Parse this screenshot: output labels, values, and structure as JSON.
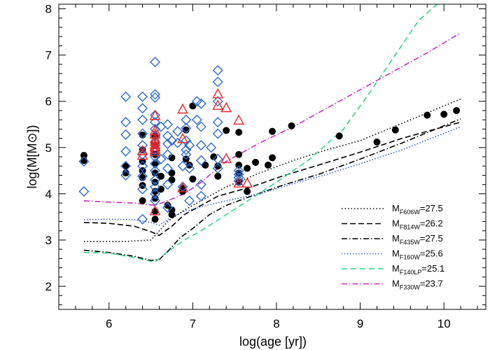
{
  "chart_data": {
    "type": "scatter",
    "title": "",
    "xlabel": "log(age [yr])",
    "ylabel": "log(M[M⊙])",
    "xlim": [
      5.4,
      10.5
    ],
    "ylim": [
      1.5,
      8.1
    ],
    "xticks": [
      6,
      7,
      8,
      9,
      10
    ],
    "yticks": [
      2,
      3,
      4,
      5,
      6,
      7,
      8
    ],
    "grid": false,
    "legend_position": "bottom-right",
    "scatter_series": [
      {
        "marker": "filled-circle",
        "color": "#000000",
        "points": [
          [
            5.7,
            4.83
          ],
          [
            5.7,
            4.72
          ],
          [
            6.2,
            4.6
          ],
          [
            6.2,
            4.45
          ],
          [
            6.4,
            5.27
          ],
          [
            6.4,
            4.95
          ],
          [
            6.4,
            4.7
          ],
          [
            6.4,
            4.5
          ],
          [
            6.4,
            4.35
          ],
          [
            6.4,
            4.18
          ],
          [
            6.4,
            3.85
          ],
          [
            6.55,
            5.25
          ],
          [
            6.55,
            5.05
          ],
          [
            6.55,
            4.85
          ],
          [
            6.55,
            4.65
          ],
          [
            6.55,
            4.45
          ],
          [
            6.55,
            4.25
          ],
          [
            6.55,
            4.05
          ],
          [
            6.55,
            3.9
          ],
          [
            6.55,
            3.62
          ],
          [
            6.55,
            3.45
          ],
          [
            6.62,
            4.38
          ],
          [
            6.62,
            4.1
          ],
          [
            6.7,
            3.75
          ],
          [
            6.75,
            4.78
          ],
          [
            6.75,
            4.45
          ],
          [
            6.75,
            4.3
          ],
          [
            6.75,
            3.65
          ],
          [
            6.75,
            3.55
          ],
          [
            6.88,
            4.12
          ],
          [
            6.88,
            4.05
          ],
          [
            6.92,
            4.75
          ],
          [
            6.92,
            5.38
          ],
          [
            6.96,
            4.62
          ],
          [
            7.0,
            4.32
          ],
          [
            7.0,
            5.9
          ],
          [
            7.15,
            4.62
          ],
          [
            7.25,
            4.8
          ],
          [
            7.3,
            4.6
          ],
          [
            7.3,
            4.38
          ],
          [
            7.4,
            5.37
          ],
          [
            7.55,
            5.33
          ],
          [
            7.55,
            4.85
          ],
          [
            7.55,
            4.62
          ],
          [
            7.55,
            4.45
          ],
          [
            7.55,
            4.25
          ],
          [
            7.65,
            4.55
          ],
          [
            7.65,
            4.05
          ],
          [
            7.75,
            4.68
          ],
          [
            7.9,
            4.62
          ],
          [
            7.95,
            4.78
          ],
          [
            7.95,
            5.35
          ],
          [
            8.18,
            5.47
          ],
          [
            8.75,
            5.25
          ],
          [
            9.2,
            5.12
          ],
          [
            9.42,
            5.38
          ],
          [
            9.8,
            5.7
          ],
          [
            10.0,
            5.72
          ],
          [
            10.15,
            5.8
          ]
        ]
      },
      {
        "marker": "open-diamond",
        "color": "#2d6bd1",
        "points": [
          [
            5.7,
            4.7
          ],
          [
            5.7,
            4.05
          ],
          [
            6.2,
            6.1
          ],
          [
            6.2,
            5.55
          ],
          [
            6.2,
            5.28
          ],
          [
            6.2,
            4.92
          ],
          [
            6.2,
            4.6
          ],
          [
            6.2,
            4.4
          ],
          [
            6.4,
            6.1
          ],
          [
            6.4,
            5.85
          ],
          [
            6.4,
            5.6
          ],
          [
            6.4,
            5.3
          ],
          [
            6.4,
            5.05
          ],
          [
            6.4,
            4.85
          ],
          [
            6.4,
            4.6
          ],
          [
            6.4,
            4.38
          ],
          [
            6.4,
            4.1
          ],
          [
            6.4,
            3.45
          ],
          [
            6.55,
            6.85
          ],
          [
            6.55,
            6.15
          ],
          [
            6.55,
            6.08
          ],
          [
            6.55,
            5.7
          ],
          [
            6.55,
            5.55
          ],
          [
            6.55,
            5.4
          ],
          [
            6.55,
            5.25
          ],
          [
            6.55,
            5.1
          ],
          [
            6.55,
            4.95
          ],
          [
            6.55,
            4.8
          ],
          [
            6.55,
            4.65
          ],
          [
            6.55,
            4.5
          ],
          [
            6.55,
            4.3
          ],
          [
            6.55,
            4.15
          ],
          [
            6.55,
            4.0
          ],
          [
            6.55,
            3.85
          ],
          [
            6.62,
            5.45
          ],
          [
            6.62,
            4.75
          ],
          [
            6.7,
            5.5
          ],
          [
            6.7,
            5.25
          ],
          [
            6.7,
            5.08
          ],
          [
            6.7,
            4.85
          ],
          [
            6.7,
            4.55
          ],
          [
            6.7,
            4.2
          ],
          [
            6.7,
            3.7
          ],
          [
            6.75,
            5.15
          ],
          [
            6.82,
            5.35
          ],
          [
            6.82,
            5.1
          ],
          [
            6.88,
            4.6
          ],
          [
            6.88,
            4.15
          ],
          [
            6.92,
            5.6
          ],
          [
            6.92,
            5.42
          ],
          [
            6.92,
            5.15
          ],
          [
            6.92,
            4.95
          ],
          [
            6.92,
            4.85
          ],
          [
            6.96,
            5.05
          ],
          [
            6.96,
            4.55
          ],
          [
            6.96,
            3.85
          ],
          [
            7.05,
            6.0
          ],
          [
            7.05,
            5.6
          ],
          [
            7.1,
            5.95
          ],
          [
            7.1,
            5.45
          ],
          [
            7.1,
            5.05
          ],
          [
            7.1,
            4.72
          ],
          [
            7.1,
            4.2
          ],
          [
            7.1,
            3.95
          ],
          [
            7.22,
            5.0
          ],
          [
            7.3,
            6.67
          ],
          [
            7.3,
            6.42
          ],
          [
            7.3,
            6.0
          ],
          [
            7.3,
            5.55
          ],
          [
            7.3,
            5.3
          ],
          [
            7.3,
            4.75
          ],
          [
            7.3,
            4.55
          ],
          [
            7.55,
            4.5
          ],
          [
            7.55,
            4.42
          ],
          [
            7.55,
            4.35
          ],
          [
            7.55,
            4.28
          ]
        ]
      },
      {
        "marker": "open-triangle",
        "color": "#e8262a",
        "points": [
          [
            6.4,
            4.92
          ],
          [
            6.4,
            4.82
          ],
          [
            6.55,
            5.68
          ],
          [
            6.55,
            5.35
          ],
          [
            6.55,
            5.28
          ],
          [
            6.55,
            5.18
          ],
          [
            6.55,
            5.12
          ],
          [
            6.55,
            5.05
          ],
          [
            6.55,
            5.0
          ],
          [
            6.55,
            4.95
          ],
          [
            6.55,
            4.9
          ],
          [
            6.55,
            3.62
          ],
          [
            6.88,
            5.82
          ],
          [
            6.88,
            5.18
          ],
          [
            6.88,
            4.12
          ],
          [
            7.3,
            6.15
          ],
          [
            7.3,
            5.9
          ],
          [
            7.4,
            5.85
          ],
          [
            7.4,
            4.75
          ],
          [
            7.55,
            5.58
          ],
          [
            7.55,
            4.22
          ],
          [
            7.65,
            4.22
          ]
        ]
      }
    ],
    "line_series": [
      {
        "name": "F606W",
        "legend_label": "M",
        "legend_sub": "F606W",
        "legend_value": "=27.5",
        "color": "#000000",
        "dash": "1.5,3",
        "points": [
          [
            5.7,
            2.97
          ],
          [
            6.0,
            2.97
          ],
          [
            6.2,
            2.97
          ],
          [
            6.5,
            3.0
          ],
          [
            6.7,
            3.4
          ],
          [
            6.9,
            3.65
          ],
          [
            7.1,
            3.85
          ],
          [
            7.4,
            4.15
          ],
          [
            7.8,
            4.45
          ],
          [
            8.2,
            4.72
          ],
          [
            8.6,
            4.95
          ],
          [
            9.0,
            5.15
          ],
          [
            9.4,
            5.45
          ],
          [
            9.8,
            5.75
          ],
          [
            10.2,
            6.05
          ]
        ]
      },
      {
        "name": "F814W",
        "legend_label": "M",
        "legend_sub": "F814W",
        "legend_value": "=26.2",
        "color": "#000000",
        "dash": "8,4",
        "points": [
          [
            5.7,
            3.38
          ],
          [
            6.0,
            3.36
          ],
          [
            6.3,
            3.3
          ],
          [
            6.5,
            3.18
          ],
          [
            6.6,
            3.1
          ],
          [
            6.75,
            3.3
          ],
          [
            6.9,
            3.55
          ],
          [
            7.1,
            3.75
          ],
          [
            7.3,
            3.95
          ],
          [
            7.7,
            4.15
          ],
          [
            8.1,
            4.4
          ],
          [
            8.5,
            4.62
          ],
          [
            9.0,
            4.9
          ],
          [
            9.5,
            5.2
          ],
          [
            10.2,
            5.55
          ]
        ]
      },
      {
        "name": "F435W",
        "legend_label": "M",
        "legend_sub": "F435W",
        "legend_value": "=27.5",
        "color": "#000000",
        "dash": "8,3,1.5,3",
        "points": [
          [
            5.7,
            2.78
          ],
          [
            6.0,
            2.73
          ],
          [
            6.3,
            2.65
          ],
          [
            6.5,
            2.56
          ],
          [
            6.6,
            2.58
          ],
          [
            6.7,
            2.75
          ],
          [
            6.85,
            3.05
          ],
          [
            7.0,
            3.25
          ],
          [
            7.2,
            3.55
          ],
          [
            7.4,
            3.75
          ],
          [
            7.7,
            3.95
          ],
          [
            8.1,
            4.2
          ],
          [
            8.5,
            4.42
          ],
          [
            9.0,
            4.75
          ],
          [
            9.5,
            5.1
          ],
          [
            10.2,
            5.62
          ]
        ]
      },
      {
        "name": "F160W",
        "legend_label": "M",
        "legend_sub": "F160W",
        "legend_value": "=25.6",
        "color": "#3a5ed0",
        "dash": "1.5,2.5",
        "points": [
          [
            5.7,
            3.44
          ],
          [
            6.0,
            3.45
          ],
          [
            6.3,
            3.44
          ],
          [
            6.5,
            3.38
          ],
          [
            6.6,
            3.32
          ],
          [
            6.75,
            3.5
          ],
          [
            6.9,
            3.62
          ],
          [
            7.1,
            3.72
          ],
          [
            7.4,
            3.85
          ],
          [
            7.8,
            4.0
          ],
          [
            8.2,
            4.22
          ],
          [
            8.6,
            4.42
          ],
          [
            9.0,
            4.65
          ],
          [
            9.5,
            4.95
          ],
          [
            10.2,
            5.45
          ]
        ]
      },
      {
        "name": "F140LP",
        "legend_label": "M",
        "legend_sub": "F140LP",
        "legend_value": "=25.1",
        "color": "#2fd68a",
        "dash": "8,5",
        "points": [
          [
            5.7,
            2.73
          ],
          [
            6.0,
            2.72
          ],
          [
            6.3,
            2.62
          ],
          [
            6.55,
            2.52
          ],
          [
            6.7,
            2.75
          ],
          [
            6.9,
            3.0
          ],
          [
            7.1,
            3.2
          ],
          [
            7.4,
            3.55
          ],
          [
            7.7,
            3.9
          ],
          [
            8.0,
            4.25
          ],
          [
            8.4,
            4.75
          ],
          [
            8.8,
            5.4
          ],
          [
            9.1,
            6.15
          ],
          [
            9.4,
            6.95
          ],
          [
            9.7,
            7.75
          ],
          [
            9.95,
            8.15
          ]
        ]
      },
      {
        "name": "F330W",
        "legend_label": "M",
        "legend_sub": "F330W",
        "legend_value": "=23.7",
        "color": "#cc2bc4",
        "dash": "8,3,1.5,3",
        "points": [
          [
            5.7,
            3.85
          ],
          [
            6.0,
            3.82
          ],
          [
            6.3,
            3.8
          ],
          [
            6.55,
            3.75
          ],
          [
            6.7,
            3.85
          ],
          [
            6.9,
            4.0
          ],
          [
            7.1,
            4.25
          ],
          [
            7.4,
            4.7
          ],
          [
            7.8,
            5.1
          ],
          [
            8.2,
            5.45
          ],
          [
            8.6,
            5.85
          ],
          [
            9.0,
            6.25
          ],
          [
            9.4,
            6.65
          ],
          [
            9.8,
            7.05
          ],
          [
            10.2,
            7.48
          ]
        ]
      }
    ]
  }
}
